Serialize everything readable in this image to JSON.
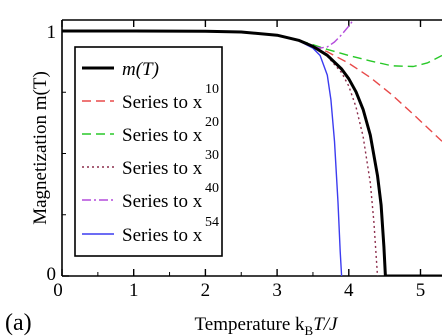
{
  "chart_data": {
    "type": "line",
    "panel_label": "(a)",
    "xlabel": "Temperature k",
    "xlabel_sub": "B",
    "xlabel_tail": "T/J",
    "ylabel": "Magnetization m(T)",
    "xlim": [
      0,
      5.3
    ],
    "ylim": [
      0,
      1
    ],
    "x_ticks": [
      0,
      1,
      2,
      3,
      4,
      5
    ],
    "x_tick_labels": [
      "0",
      "1",
      "2",
      "3",
      "4",
      "5"
    ],
    "y_ticks": [
      0,
      1
    ],
    "y_tick_labels": [
      "0",
      "1"
    ],
    "legend_position": "left",
    "series": [
      {
        "name": "m(T)",
        "color": "#000000",
        "dash": "solid",
        "x": [
          0,
          1.0,
          2.0,
          2.5,
          3.0,
          3.3,
          3.5,
          3.7,
          3.9,
          4.0,
          4.1,
          4.2,
          4.3,
          4.4,
          4.45,
          4.49,
          4.51,
          5.3
        ],
        "y": [
          1.0,
          1.0,
          0.999,
          0.996,
          0.983,
          0.962,
          0.937,
          0.901,
          0.845,
          0.805,
          0.752,
          0.68,
          0.575,
          0.41,
          0.29,
          0.12,
          0.0,
          0.0
        ]
      },
      {
        "name": "Series to x",
        "exponent": "10",
        "color": "#e84a4a",
        "dash": "dashed",
        "x": [
          0,
          1.0,
          2.0,
          2.5,
          3.0,
          3.3,
          3.5,
          3.7,
          4.0,
          4.3,
          4.6,
          4.9,
          5.3
        ],
        "y": [
          1.0,
          1.0,
          0.999,
          0.996,
          0.983,
          0.963,
          0.942,
          0.915,
          0.868,
          0.81,
          0.74,
          0.66,
          0.55
        ]
      },
      {
        "name": "Series to x",
        "exponent": "20",
        "color": "#28c828",
        "dash": "dashed",
        "x": [
          0,
          1.0,
          2.0,
          2.5,
          3.0,
          3.3,
          3.5,
          3.7,
          4.0,
          4.3,
          4.6,
          4.9,
          5.1,
          5.3
        ],
        "y": [
          1.0,
          1.0,
          0.999,
          0.996,
          0.983,
          0.963,
          0.944,
          0.925,
          0.9,
          0.878,
          0.858,
          0.855,
          0.87,
          0.9
        ]
      },
      {
        "name": "Series to x",
        "exponent": "30",
        "color": "#8b2d4b",
        "dash": "dotted",
        "x": [
          0,
          1.0,
          2.0,
          2.5,
          3.0,
          3.3,
          3.5,
          3.7,
          3.9,
          4.0,
          4.1,
          4.2,
          4.3,
          4.35,
          4.4
        ],
        "y": [
          1.0,
          1.0,
          0.999,
          0.996,
          0.983,
          0.962,
          0.937,
          0.897,
          0.83,
          0.775,
          0.69,
          0.57,
          0.38,
          0.22,
          0.0
        ]
      },
      {
        "name": "Series to x",
        "exponent": "40",
        "color": "#b44cdc",
        "dash": "dashdot",
        "x": [
          0,
          1.0,
          2.0,
          2.5,
          3.0,
          3.3,
          3.5,
          3.6,
          3.7,
          3.8,
          3.9,
          4.0,
          4.1
        ],
        "y": [
          1.0,
          1.0,
          0.999,
          0.996,
          0.983,
          0.962,
          0.938,
          0.93,
          0.935,
          0.955,
          0.985,
          1.02,
          1.06
        ]
      },
      {
        "name": "Series to x",
        "exponent": "54",
        "color": "#3c3cf0",
        "dash": "solid",
        "x": [
          0,
          1.0,
          2.0,
          2.5,
          3.0,
          3.3,
          3.5,
          3.6,
          3.7,
          3.75,
          3.8,
          3.85,
          3.88,
          3.9
        ],
        "y": [
          1.0,
          1.0,
          0.999,
          0.996,
          0.983,
          0.96,
          0.93,
          0.9,
          0.82,
          0.72,
          0.55,
          0.3,
          0.1,
          0.0
        ]
      }
    ]
  }
}
